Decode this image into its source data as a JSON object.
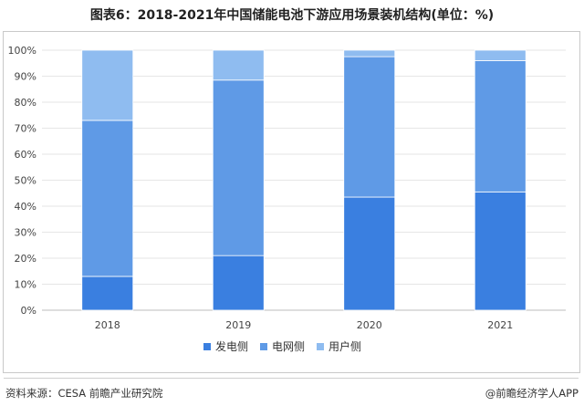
{
  "title": "图表6：2018-2021年中国储能电池下游应用场景装机结构(单位：%)",
  "footer": {
    "source": "资料来源：CESA 前瞻产业研究院",
    "credit": "@前瞻经济学人APP"
  },
  "colors": {
    "generation": "#3a7fe0",
    "grid": "#5f9ae6",
    "user": "#8fbcf0"
  },
  "chart_data": {
    "type": "bar",
    "stacked": true,
    "categories": [
      "2018",
      "2019",
      "2020",
      "2021"
    ],
    "series": [
      {
        "name": "发电侧",
        "values": [
          13,
          21,
          43.5,
          45.5
        ]
      },
      {
        "name": "电网侧",
        "values": [
          60,
          67.5,
          54,
          50.5
        ]
      },
      {
        "name": "用户侧",
        "values": [
          27,
          11.5,
          2.5,
          4
        ]
      }
    ],
    "ylim": [
      0,
      100
    ],
    "yticks": [
      "0%",
      "10%",
      "20%",
      "30%",
      "40%",
      "50%",
      "60%",
      "70%",
      "80%",
      "90%",
      "100%"
    ],
    "grid": true,
    "legend": "bottom"
  }
}
